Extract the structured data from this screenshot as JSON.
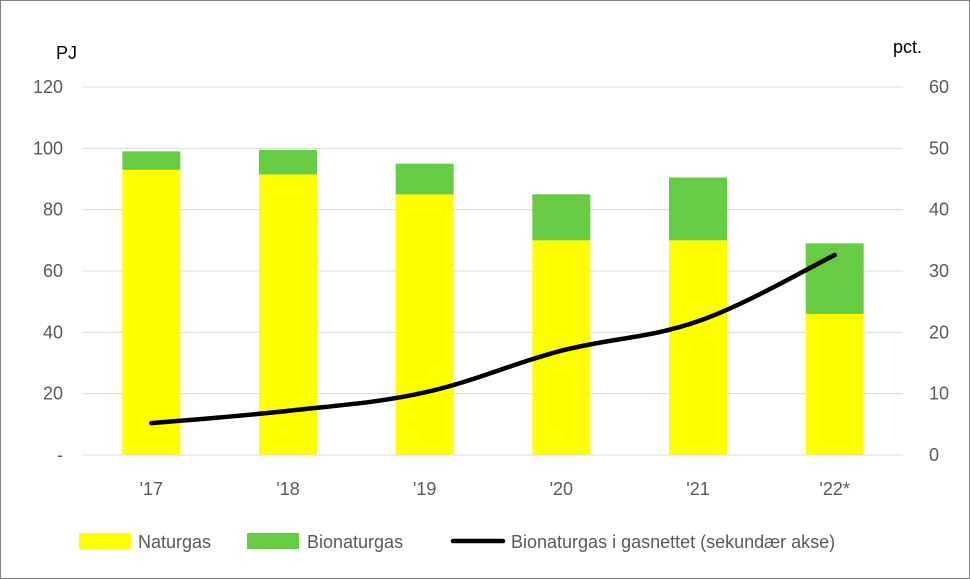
{
  "chart_data": {
    "type": "bar",
    "stacked": true,
    "categories": [
      "'17",
      "'18",
      "'19",
      "'20",
      "'21",
      "'22*"
    ],
    "series": [
      {
        "name": "Naturgas",
        "kind": "bar",
        "axis": "left",
        "color": "#FFFF00",
        "values": [
          93,
          91.5,
          85,
          70,
          70,
          46
        ]
      },
      {
        "name": "Bionaturgas",
        "kind": "bar",
        "axis": "left",
        "color": "#66CC44",
        "values": [
          6,
          8,
          10,
          15,
          20.5,
          23
        ]
      },
      {
        "name": "Bionaturgas i gasnettet (sekundær akse)",
        "kind": "line",
        "axis": "right",
        "color": "#000000",
        "values": [
          5.2,
          7.2,
          10.2,
          17.0,
          21.8,
          32.6
        ]
      }
    ],
    "y_left": {
      "unit": "PJ",
      "min": 0,
      "max": 120,
      "ticks": [
        0,
        20,
        40,
        60,
        80,
        100,
        120
      ],
      "tick_labels": [
        "-",
        "20",
        "40",
        "60",
        "80",
        "100",
        "120"
      ]
    },
    "y_right": {
      "unit": "pct.",
      "min": 0,
      "max": 60,
      "ticks": [
        0,
        10,
        20,
        30,
        40,
        50,
        60
      ],
      "tick_labels": [
        "0",
        "10",
        "20",
        "30",
        "40",
        "50",
        "60"
      ]
    },
    "grid": true,
    "legend_position": "bottom"
  }
}
